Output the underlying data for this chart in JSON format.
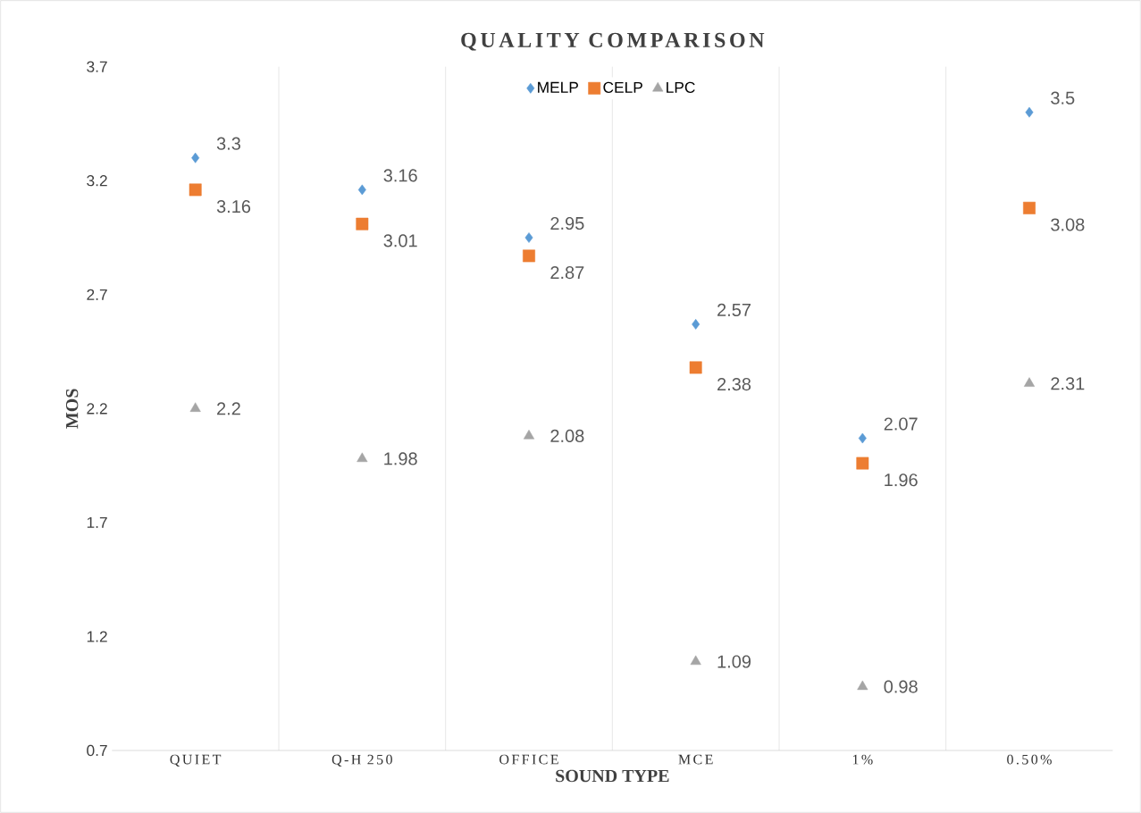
{
  "chart_data": {
    "type": "scatter",
    "title": "QUALITY COMPARISON",
    "xlabel": "SOUND TYPE",
    "ylabel": "MOS",
    "categories": [
      "QUIET",
      "Q-H 250",
      "OFFICE",
      "MCE",
      "1%",
      "0.50%"
    ],
    "series": [
      {
        "name": "MELP",
        "color": "#5b9bd5",
        "marker": "diamond",
        "values": [
          3.3,
          3.16,
          2.95,
          2.57,
          2.07,
          3.5
        ]
      },
      {
        "name": "CELP",
        "color": "#ed7d31",
        "marker": "square",
        "values": [
          3.16,
          3.01,
          2.87,
          2.38,
          1.96,
          3.08
        ]
      },
      {
        "name": "LPC",
        "color": "#a5a5a5",
        "marker": "triangle",
        "values": [
          2.2,
          1.98,
          2.08,
          1.09,
          0.98,
          2.31
        ]
      }
    ],
    "ylim": [
      0.7,
      3.7
    ],
    "yticks": [
      0.7,
      1.2,
      1.7,
      2.2,
      2.7,
      3.2,
      3.7
    ],
    "grid": "x",
    "legend": "top",
    "data_labels": true
  }
}
